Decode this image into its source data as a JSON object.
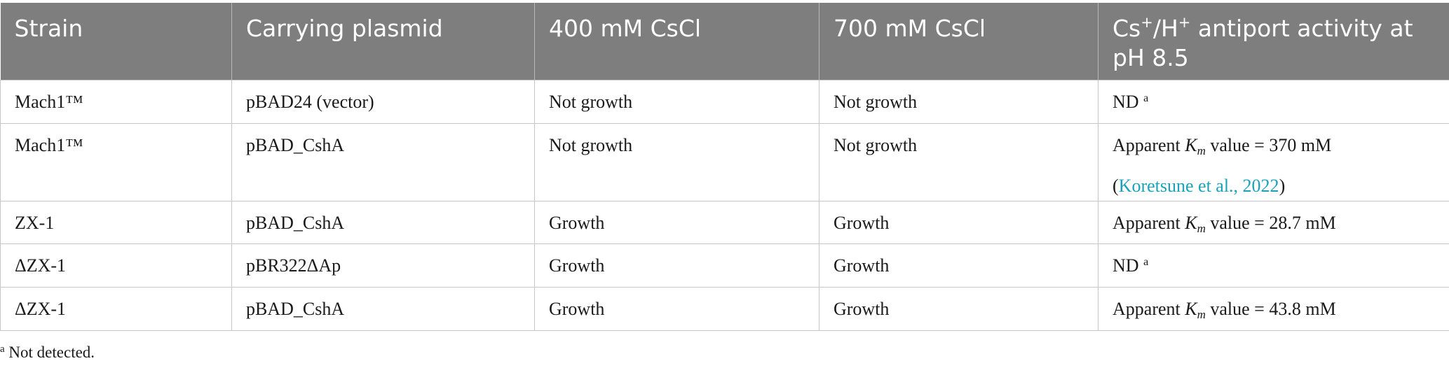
{
  "table": {
    "headers": {
      "strain": "Strain",
      "plasmid": "Carrying plasmid",
      "cs400": "400 mM CsCl",
      "cs700": "700 mM CsCl",
      "activity_pre": "Cs",
      "activity_sup1": "+",
      "activity_mid": "/H",
      "activity_sup2": "+",
      "activity_post": " antiport activity at pH 8.5"
    },
    "rows": [
      {
        "strain": "Mach1™",
        "plasmid": "pBAD24 (vector)",
        "cs400": "Not growth",
        "cs700": "Not growth",
        "activity": "ND",
        "activity_note": "a"
      },
      {
        "strain": "Mach1™",
        "plasmid": "pBAD_CshA",
        "cs400": "Not growth",
        "cs700": "Not growth",
        "activity_prefix": "Apparent",
        "km_letter": "K",
        "km_sub": "m",
        "activity_value": "value = 370 mM",
        "ref_open": "(",
        "ref": "Koretsune et al., 2022",
        "ref_close": ")"
      },
      {
        "strain": "ZX-1",
        "plasmid": "pBAD_CshA",
        "cs400": "Growth",
        "cs700": "Growth",
        "activity_prefix": "Apparent",
        "km_letter": "K",
        "km_sub": "m",
        "activity_value": "value = 28.7 mM"
      },
      {
        "strain": "ΔZX-1",
        "plasmid": "pBR322ΔAp",
        "cs400": "Growth",
        "cs700": "Growth",
        "activity": "ND",
        "activity_note": "a"
      },
      {
        "strain": "ΔZX-1",
        "plasmid": "pBAD_CshA",
        "cs400": "Growth",
        "cs700": "Growth",
        "activity_prefix": "Apparent",
        "km_letter": "K",
        "km_sub": "m",
        "activity_value": "value = 43.8 mM"
      }
    ]
  },
  "footnote": {
    "marker": "a",
    "text": " Not detected."
  }
}
